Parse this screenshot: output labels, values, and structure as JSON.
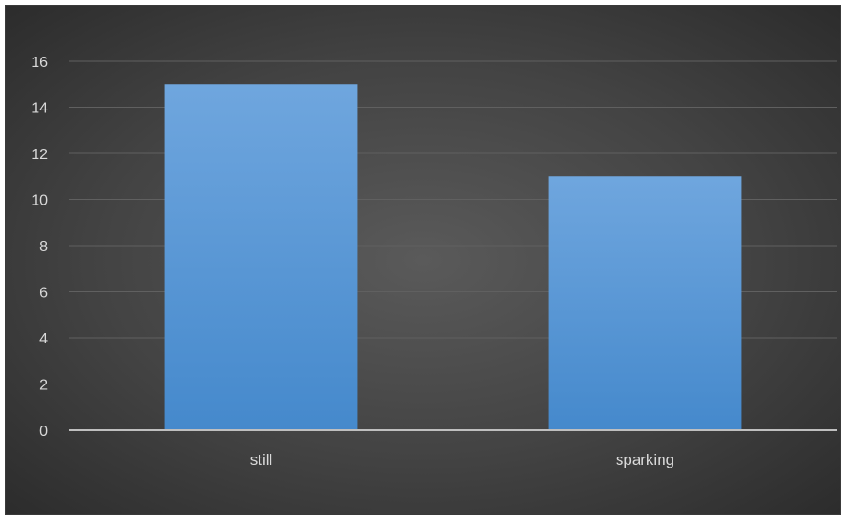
{
  "chart_data": {
    "type": "bar",
    "categories": [
      "still",
      "sparking"
    ],
    "values": [
      15,
      11
    ],
    "ylim": [
      0,
      16
    ],
    "yticks": [
      0,
      2,
      4,
      6,
      8,
      10,
      12,
      14,
      16
    ],
    "grid": true,
    "bar_color": "#5b9bd5",
    "background_color": "#474747"
  }
}
